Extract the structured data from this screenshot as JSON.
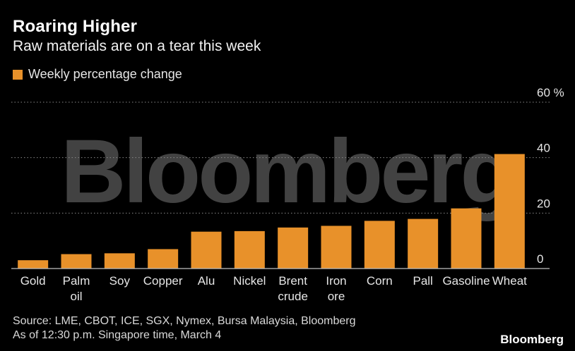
{
  "header": {
    "title": "Roaring Higher",
    "subtitle": "Raw materials are on a tear this week"
  },
  "legend": {
    "label": "Weekly percentage change"
  },
  "colors": {
    "bar": "#e8912a",
    "background": "#000000",
    "grid": "#8a8a8a",
    "watermark": "#4a4a4a"
  },
  "chart_data": {
    "type": "bar",
    "categories": [
      [
        "Gold"
      ],
      [
        "Palm",
        "oil"
      ],
      [
        "Soy"
      ],
      [
        "Copper"
      ],
      [
        "Alu"
      ],
      [
        "Nickel"
      ],
      [
        "Brent",
        "crude"
      ],
      [
        "Iron",
        "ore"
      ],
      [
        "Corn"
      ],
      [
        "Pall"
      ],
      [
        "Gasoline"
      ],
      [
        "Wheat"
      ]
    ],
    "series": [
      {
        "name": "Weekly percentage change",
        "values": [
          3,
          5.2,
          5.5,
          7,
          13.3,
          13.5,
          14.8,
          15.4,
          17.2,
          17.9,
          21.7,
          41.3
        ]
      }
    ],
    "ylim": [
      0,
      60
    ],
    "yticks": [
      0,
      20,
      40,
      60
    ],
    "ytick_labels": [
      "0",
      "20",
      "40",
      "60 %"
    ],
    "grid": true
  },
  "watermark": "Bloomberg",
  "footer": {
    "source": "Source: LME, CBOT, ICE, SGX, Nymex, Bursa Malaysia, Bloomberg",
    "note": "As of 12:30 p.m. Singapore time, March 4",
    "brand": "Bloomberg"
  }
}
